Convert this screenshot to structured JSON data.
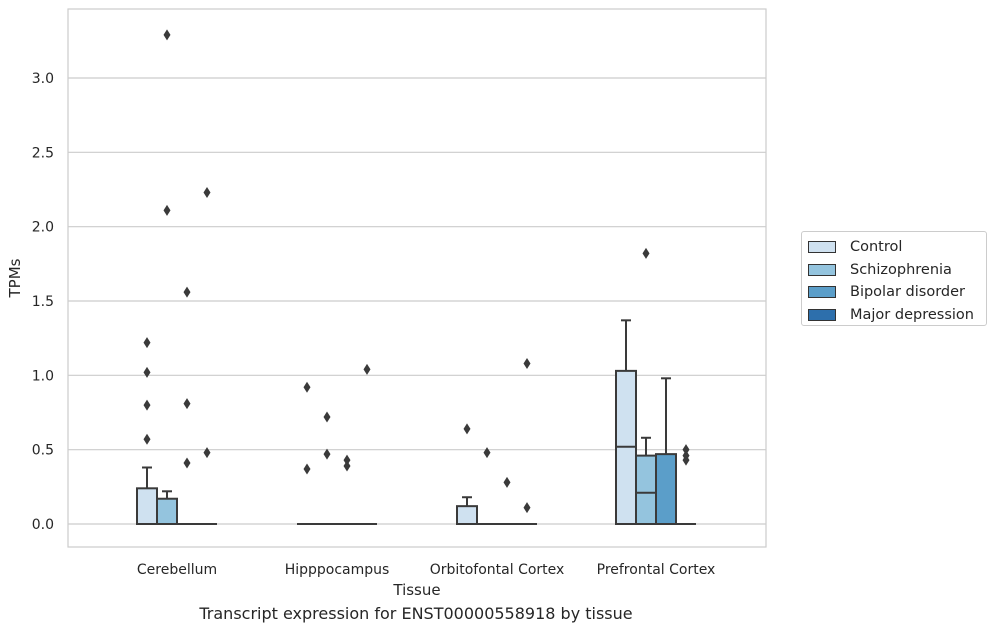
{
  "chart_data": {
    "type": "box",
    "title": "Transcript expression for ENST00000558918 by tissue",
    "xlabel": "Tissue",
    "ylabel": "TPMs",
    "ylim": [
      -0.16,
      3.45
    ],
    "yticks": [
      "0.0",
      "0.5",
      "1.0",
      "1.5",
      "2.0",
      "2.5",
      "3.0"
    ],
    "grid": true,
    "legend_position": "right",
    "categories": [
      "Cerebellum",
      "Hipppocampus",
      "Orbitofontal Cortex",
      "Prefrontal Cortex"
    ],
    "series": [
      {
        "name": "Control",
        "color": "#cfe1f0",
        "boxes": [
          {
            "q1": 0.0,
            "median": 0.0,
            "q3": 0.24,
            "whisker_low": 0.0,
            "whisker_high": 0.38,
            "outliers": [
              0.57,
              0.8,
              1.02,
              1.22
            ]
          },
          {
            "q1": 0.0,
            "median": 0.0,
            "q3": 0.0,
            "whisker_low": 0.0,
            "whisker_high": 0.0,
            "outliers": [
              0.37,
              0.92
            ]
          },
          {
            "q1": 0.0,
            "median": 0.0,
            "q3": 0.12,
            "whisker_low": 0.0,
            "whisker_high": 0.18,
            "outliers": [
              0.64
            ]
          },
          {
            "q1": 0.0,
            "median": 0.52,
            "q3": 1.03,
            "whisker_low": 0.0,
            "whisker_high": 1.37,
            "outliers": []
          }
        ]
      },
      {
        "name": "Schizophrenia",
        "color": "#94c4de",
        "boxes": [
          {
            "q1": 0.0,
            "median": 0.0,
            "q3": 0.17,
            "whisker_low": 0.0,
            "whisker_high": 0.22,
            "outliers": [
              2.11,
              3.29
            ]
          },
          {
            "q1": 0.0,
            "median": 0.0,
            "q3": 0.0,
            "whisker_low": 0.0,
            "whisker_high": 0.0,
            "outliers": [
              0.47,
              0.72
            ]
          },
          {
            "q1": 0.0,
            "median": 0.0,
            "q3": 0.0,
            "whisker_low": 0.0,
            "whisker_high": 0.0,
            "outliers": [
              0.48
            ]
          },
          {
            "q1": 0.0,
            "median": 0.21,
            "q3": 0.46,
            "whisker_low": 0.0,
            "whisker_high": 0.58,
            "outliers": [
              1.82
            ]
          }
        ]
      },
      {
        "name": "Bipolar disorder",
        "color": "#5b9ec9",
        "boxes": [
          {
            "q1": 0.0,
            "median": 0.0,
            "q3": 0.0,
            "whisker_low": 0.0,
            "whisker_high": 0.0,
            "outliers": [
              0.41,
              0.81,
              1.56
            ]
          },
          {
            "q1": 0.0,
            "median": 0.0,
            "q3": 0.0,
            "whisker_low": 0.0,
            "whisker_high": 0.0,
            "outliers": [
              0.39,
              0.43
            ]
          },
          {
            "q1": 0.0,
            "median": 0.0,
            "q3": 0.0,
            "whisker_low": 0.0,
            "whisker_high": 0.0,
            "outliers": [
              0.28
            ]
          },
          {
            "q1": 0.0,
            "median": 0.0,
            "q3": 0.47,
            "whisker_low": 0.0,
            "whisker_high": 0.98,
            "outliers": []
          }
        ]
      },
      {
        "name": "Major depression",
        "color": "#2d6fac",
        "boxes": [
          {
            "q1": 0.0,
            "median": 0.0,
            "q3": 0.0,
            "whisker_low": 0.0,
            "whisker_high": 0.0,
            "outliers": [
              0.48,
              2.23
            ]
          },
          {
            "q1": 0.0,
            "median": 0.0,
            "q3": 0.0,
            "whisker_low": 0.0,
            "whisker_high": 0.0,
            "outliers": [
              1.04
            ]
          },
          {
            "q1": 0.0,
            "median": 0.0,
            "q3": 0.0,
            "whisker_low": 0.0,
            "whisker_high": 0.0,
            "outliers": [
              0.11,
              1.08
            ]
          },
          {
            "q1": 0.0,
            "median": 0.0,
            "q3": 0.0,
            "whisker_low": 0.0,
            "whisker_high": 0.0,
            "outliers": [
              0.43,
              0.46,
              0.5
            ]
          }
        ]
      }
    ]
  }
}
